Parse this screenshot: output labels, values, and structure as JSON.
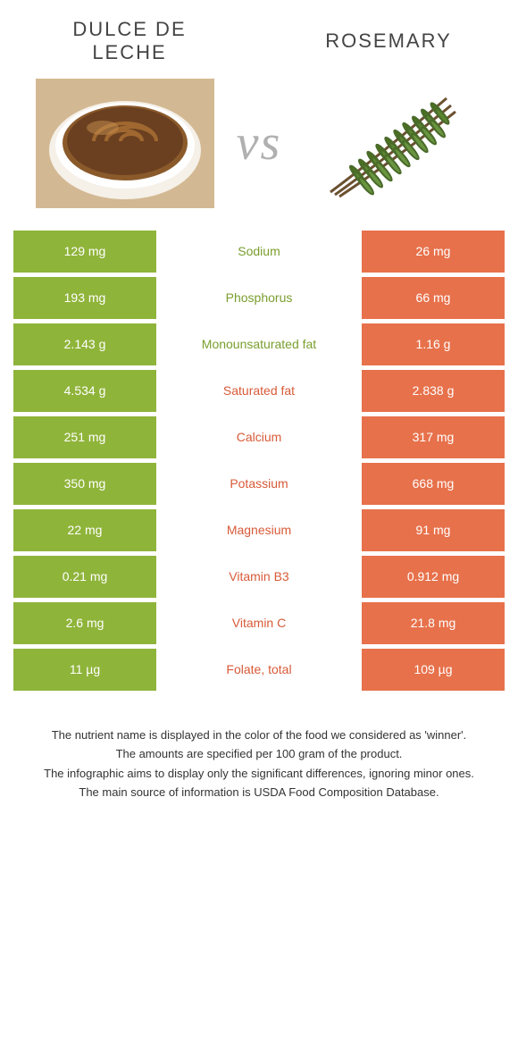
{
  "colors": {
    "green": "#8fb43a",
    "orange": "#e7714b",
    "label_green": "#7a9e2e",
    "label_orange": "#d85a38",
    "title_text": "#555555",
    "vs_text": "#b0b0b0"
  },
  "left_food": "Dulce de leche",
  "right_food": "Rosemary",
  "vs_text": "vs",
  "rows": [
    {
      "label": "Sodium",
      "left": "129 mg",
      "right": "26 mg",
      "winner": "left"
    },
    {
      "label": "Phosphorus",
      "left": "193 mg",
      "right": "66 mg",
      "winner": "left"
    },
    {
      "label": "Monounsaturated fat",
      "left": "2.143 g",
      "right": "1.16 g",
      "winner": "left"
    },
    {
      "label": "Saturated fat",
      "left": "4.534 g",
      "right": "2.838 g",
      "winner": "right"
    },
    {
      "label": "Calcium",
      "left": "251 mg",
      "right": "317 mg",
      "winner": "right"
    },
    {
      "label": "Potassium",
      "left": "350 mg",
      "right": "668 mg",
      "winner": "right"
    },
    {
      "label": "Magnesium",
      "left": "22 mg",
      "right": "91 mg",
      "winner": "right"
    },
    {
      "label": "Vitamin B3",
      "left": "0.21 mg",
      "right": "0.912 mg",
      "winner": "right"
    },
    {
      "label": "Vitamin C",
      "left": "2.6 mg",
      "right": "21.8 mg",
      "winner": "right"
    },
    {
      "label": "Folate, total",
      "left": "11 µg",
      "right": "109 µg",
      "winner": "right"
    }
  ],
  "footer": [
    "The nutrient name is displayed in the color of the food we considered as 'winner'.",
    "The amounts are specified per 100 gram of the product.",
    "The infographic aims to display only the significant differences, ignoring minor ones.",
    "The main source of information is USDA Food Composition Database."
  ]
}
